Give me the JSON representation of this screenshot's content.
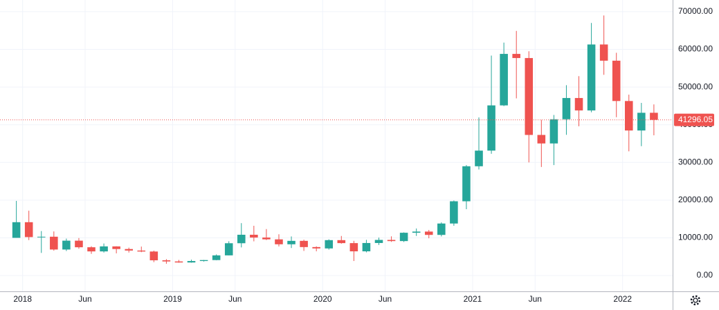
{
  "chart_data": {
    "type": "candlestick",
    "x": [
      "2017-12",
      "2018-01",
      "2018-02",
      "2018-03",
      "2018-04",
      "2018-05",
      "2018-06",
      "2018-07",
      "2018-08",
      "2018-09",
      "2018-10",
      "2018-11",
      "2018-12",
      "2019-01",
      "2019-02",
      "2019-03",
      "2019-04",
      "2019-05",
      "2019-06",
      "2019-07",
      "2019-08",
      "2019-09",
      "2019-10",
      "2019-11",
      "2019-12",
      "2020-01",
      "2020-02",
      "2020-03",
      "2020-04",
      "2020-05",
      "2020-06",
      "2020-07",
      "2020-08",
      "2020-09",
      "2020-10",
      "2020-11",
      "2020-12",
      "2021-01",
      "2021-02",
      "2021-03",
      "2021-04",
      "2021-05",
      "2021-06",
      "2021-07",
      "2021-08",
      "2021-09",
      "2021-10",
      "2021-11",
      "2021-12",
      "2022-01",
      "2022-02",
      "2022-03"
    ],
    "open": [
      10000,
      14150,
      10200,
      10300,
      6900,
      9250,
      7500,
      6400,
      7730,
      7030,
      6630,
      6370,
      4040,
      3740,
      3460,
      3850,
      4100,
      5350,
      8570,
      10820,
      10080,
      9600,
      8290,
      9200,
      7550,
      7190,
      9390,
      8600,
      6420,
      8630,
      9450,
      9140,
      11350,
      11660,
      10780,
      13800,
      19700,
      28990,
      33140,
      45140,
      58800,
      57700,
      37300,
      35040,
      41460,
      47100,
      43800,
      61300,
      57000,
      46300,
      38480,
      43180
    ],
    "high": [
      19800,
      17200,
      11800,
      11700,
      9800,
      9950,
      7780,
      8500,
      7760,
      7400,
      7680,
      6600,
      4350,
      4140,
      4210,
      4140,
      5600,
      9100,
      13900,
      13200,
      12330,
      10950,
      10370,
      9500,
      7750,
      9600,
      10500,
      9200,
      9470,
      10070,
      10400,
      11450,
      12480,
      12100,
      14100,
      19900,
      29300,
      41950,
      58350,
      61800,
      64900,
      59500,
      41300,
      42600,
      50500,
      52900,
      67000,
      69000,
      59100,
      47990,
      45800,
      45400
    ],
    "low": [
      10000,
      9400,
      6000,
      6600,
      6500,
      7100,
      5750,
      6100,
      5880,
      6100,
      6200,
      3550,
      3120,
      3400,
      3400,
      3700,
      4050,
      5330,
      7460,
      9070,
      9400,
      7710,
      7300,
      6530,
      6430,
      6870,
      8450,
      3850,
      6150,
      8100,
      8930,
      8900,
      10500,
      9880,
      10370,
      13200,
      17600,
      28130,
      32300,
      44950,
      47000,
      30000,
      28800,
      29300,
      37330,
      39600,
      43300,
      53250,
      42000,
      32950,
      34320,
      37200
    ],
    "close": [
      14150,
      10200,
      10300,
      6900,
      9250,
      7500,
      6400,
      7730,
      7030,
      6630,
      6370,
      4040,
      3740,
      3460,
      3850,
      4100,
      5350,
      8570,
      10820,
      10080,
      9600,
      8290,
      9200,
      7550,
      7190,
      9390,
      8600,
      6420,
      8630,
      9450,
      9140,
      11350,
      11660,
      10780,
      13800,
      19700,
      28990,
      33140,
      45140,
      58800,
      57700,
      37300,
      35040,
      41460,
      47100,
      43800,
      61300,
      57000,
      46300,
      38480,
      43180,
      41296.05
    ],
    "up_color": "#26a69a",
    "down_color": "#ef5350",
    "xlim": [
      "2017-12",
      "2022-04"
    ],
    "xticks": [
      {
        "value": "2018-01",
        "label": "2018"
      },
      {
        "value": "2018-06",
        "label": "Jun"
      },
      {
        "value": "2019-01",
        "label": "2019"
      },
      {
        "value": "2019-06",
        "label": "Jun"
      },
      {
        "value": "2020-01",
        "label": "2020"
      },
      {
        "value": "2020-06",
        "label": "Jun"
      },
      {
        "value": "2021-01",
        "label": "2021"
      },
      {
        "value": "2021-06",
        "label": "Jun"
      },
      {
        "value": "2022-01",
        "label": "2022"
      }
    ],
    "ylim": [
      -4200,
      73100
    ],
    "yticks": [
      {
        "value": 0,
        "label": "0.00"
      },
      {
        "value": 10000,
        "label": "10000.00"
      },
      {
        "value": 20000,
        "label": "20000.00"
      },
      {
        "value": 30000,
        "label": "30000.00"
      },
      {
        "value": 40000,
        "label": "40000.00"
      },
      {
        "value": 50000,
        "label": "50000.00"
      },
      {
        "value": 60000,
        "label": "60000.00"
      },
      {
        "value": 70000,
        "label": "70000.00"
      }
    ],
    "last_price": 41296.05,
    "grid": true
  }
}
